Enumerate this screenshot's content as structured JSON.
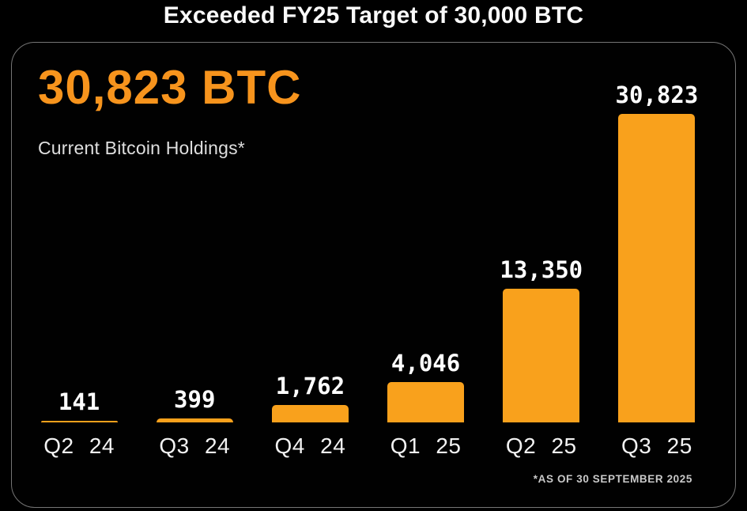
{
  "page": {
    "title": "Exceeded FY25 Target of 30,000 BTC"
  },
  "panel": {
    "headline_value": "30,823 BTC",
    "subtitle": "Current Bitcoin Holdings*",
    "footnote": "*AS OF 30 SEPTEMBER 2025"
  },
  "colors": {
    "background": "#000000",
    "accent_orange": "#F7941D",
    "bar_orange": "#F9A11C",
    "text_white": "#FFFFFF",
    "muted_text": "#DFDFDF",
    "panel_border": "#757575"
  },
  "chart_data": {
    "type": "bar",
    "title": "Exceeded FY25 Target of 30,000 BTC",
    "subtitle": "Current Bitcoin Holdings*",
    "categories": [
      "Q2 24",
      "Q3 24",
      "Q4 24",
      "Q1 25",
      "Q2 25",
      "Q3 25"
    ],
    "values": [
      141,
      399,
      1762,
      4046,
      13350,
      30823
    ],
    "value_labels": [
      "141",
      "399",
      "1,762",
      "4,046",
      "13,350",
      "30,823"
    ],
    "unit": "BTC",
    "current_total": 30823,
    "target": 30000,
    "as_of": "*AS OF 30 SEPTEMBER 2025",
    "ylim": [
      0,
      30823
    ],
    "grid": false,
    "legend": false,
    "bar_color": "#F9A11C"
  }
}
